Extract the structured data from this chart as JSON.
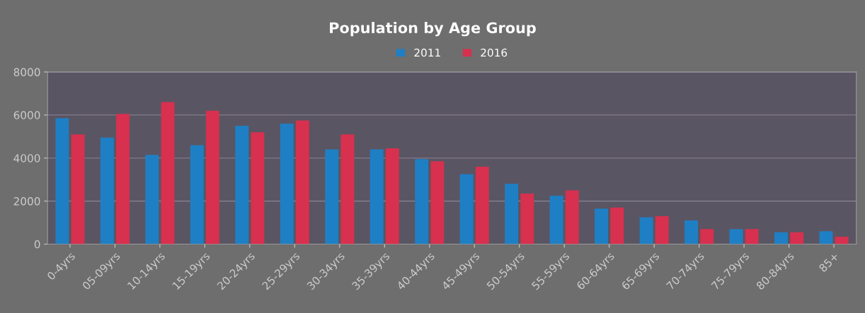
{
  "chart_data": {
    "type": "bar",
    "title": "Population by Age Group",
    "categories": [
      "0-4yrs",
      "05-09yrs",
      "10-14yrs",
      "15-19yrs",
      "20-24yrs",
      "25-29yrs",
      "30-34yrs",
      "35-39yrs",
      "40-44yrs",
      "45-49yrs",
      "50-54yrs",
      "55-59yrs",
      "60-64yrs",
      "65-69yrs",
      "70-74yrs",
      "75-79yrs",
      "80-84yrs",
      "85+"
    ],
    "series": [
      {
        "name": "2011",
        "color": "#1f7fc4",
        "values": [
          5850,
          4950,
          4150,
          4600,
          5500,
          5600,
          4400,
          4400,
          3950,
          3250,
          2800,
          2250,
          1650,
          1250,
          1100,
          700,
          550,
          600
        ]
      },
      {
        "name": "2016",
        "color": "#d8304f",
        "values": [
          5100,
          6050,
          6600,
          6200,
          5200,
          5750,
          5100,
          4450,
          3850,
          3600,
          2350,
          2500,
          1700,
          1300,
          700,
          700,
          550,
          350
        ]
      }
    ],
    "ylim": [
      0,
      8000
    ],
    "yticks": [
      0,
      2000,
      4000,
      6000,
      8000
    ],
    "grid": "y",
    "legend": "top"
  }
}
